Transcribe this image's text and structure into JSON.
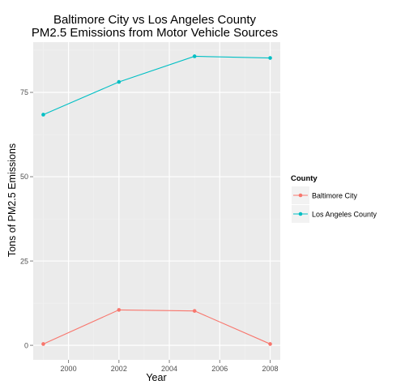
{
  "chart_data": {
    "type": "line",
    "title": [
      "Baltimore City vs Los Angeles County",
      "PM2.5 Emissions from Motor Vehicle Sources"
    ],
    "xlabel": "Year",
    "ylabel": "Tons of PM2.5 Emissions",
    "x": [
      1999,
      2002,
      2005,
      2008
    ],
    "xlim": [
      1998.6,
      2008.4
    ],
    "ylim": [
      -4.3,
      89.9
    ],
    "xticks": [
      2000,
      2002,
      2004,
      2006,
      2008
    ],
    "yticks": [
      0,
      25,
      50,
      75
    ],
    "grid": true,
    "legend_position": "right",
    "legend_title": "County",
    "series": [
      {
        "name": "Baltimore City",
        "color": "#F8766D",
        "values": [
          0.4,
          10.5,
          10.2,
          0.4
        ]
      },
      {
        "name": "Los Angeles County",
        "color": "#00BFC4",
        "values": [
          68.4,
          78.1,
          85.7,
          85.2
        ]
      }
    ]
  }
}
